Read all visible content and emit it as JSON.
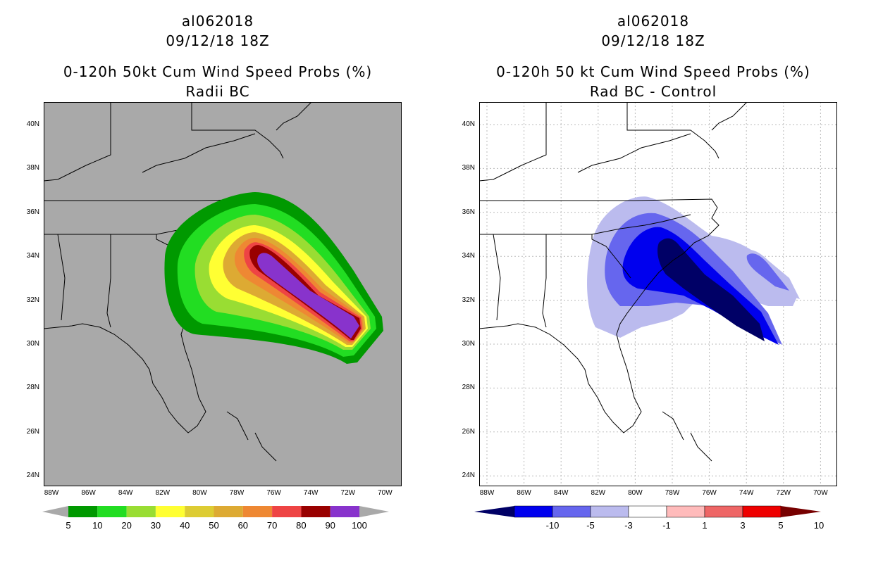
{
  "left": {
    "storm": "al062018",
    "datetime": "09/12/18 18Z",
    "title": "0-120h 50kt Cum Wind Speed Probs (%)",
    "subtitle": "Radii BC",
    "lat_labels": [
      "40N",
      "38N",
      "36N",
      "34N",
      "32N",
      "30N",
      "28N",
      "26N",
      "24N"
    ],
    "lon_labels": [
      "88W",
      "86W",
      "84W",
      "82W",
      "80W",
      "78W",
      "76W",
      "74W",
      "72W",
      "70W"
    ],
    "colorbar": {
      "labels": [
        "5",
        "10",
        "20",
        "30",
        "40",
        "50",
        "60",
        "70",
        "80",
        "90",
        "100"
      ],
      "colors": [
        "#009900",
        "#22dd22",
        "#99dd33",
        "#ffff33",
        "#ddcc33",
        "#ddaa33",
        "#ee8833",
        "#ee4444",
        "#990000",
        "#8833cc"
      ]
    }
  },
  "right": {
    "storm": "al062018",
    "datetime": "09/12/18 18Z",
    "title": "0-120h 50 kt Cum Wind Speed Probs (%)",
    "subtitle": "Rad BC - Control",
    "lat_labels": [
      "40N",
      "38N",
      "36N",
      "34N",
      "32N",
      "30N",
      "28N",
      "26N",
      "24N"
    ],
    "lon_labels": [
      "88W",
      "86W",
      "84W",
      "82W",
      "80W",
      "78W",
      "76W",
      "74W",
      "72W",
      "70W"
    ],
    "colorbar": {
      "labels": [
        "-10",
        "-5",
        "-3",
        "-1",
        "1",
        "3",
        "5",
        "10"
      ],
      "colors": [
        "#000066",
        "#0000ee",
        "#6666ee",
        "#bbbbee",
        "#ffffff",
        "#ffbbbb",
        "#ee6666",
        "#ee0000",
        "#770000"
      ]
    }
  },
  "colors": {
    "ocean_left": "#a9a9a9",
    "grid_right": "#bbbbbb"
  }
}
